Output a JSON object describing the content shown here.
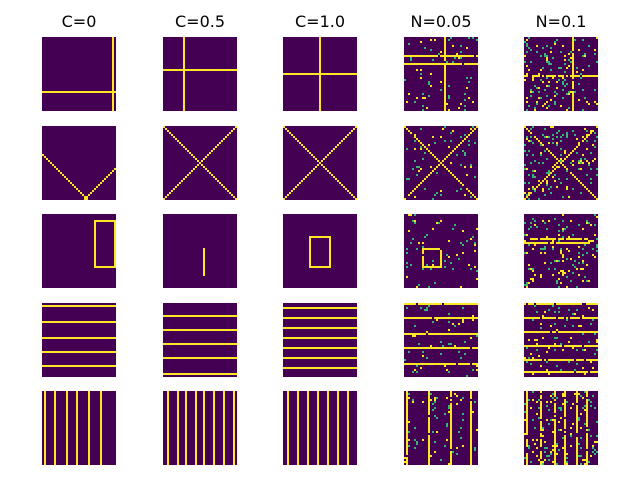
{
  "figure": {
    "column_titles": [
      "C=0",
      "C=0.5",
      "C=1.0",
      "N=0.05",
      "N=0.1"
    ],
    "colors": {
      "background": "#440154",
      "foreground": "#fde725",
      "mid": "#35b779"
    },
    "grid_size": 37,
    "rows": [
      {
        "name": "cross",
        "panels": [
          {
            "lines": [
              {
                "kind": "v",
                "at": 35
              },
              {
                "kind": "h",
                "at": 27
              }
            ],
            "noise": 0
          },
          {
            "lines": [
              {
                "kind": "v",
                "at": 10
              },
              {
                "kind": "h",
                "at": 16
              }
            ],
            "noise": 0
          },
          {
            "lines": [
              {
                "kind": "v",
                "at": 18
              },
              {
                "kind": "h",
                "at": 18
              }
            ],
            "noise": 0
          },
          {
            "lines": [
              {
                "kind": "v",
                "at": 20
              },
              {
                "kind": "h",
                "at": 9
              },
              {
                "kind": "h",
                "at": 13
              }
            ],
            "noise": 0.05,
            "seed": 11
          },
          {
            "lines": [
              {
                "kind": "v",
                "at": 24
              },
              {
                "kind": "h",
                "at": 19
              }
            ],
            "noise": 0.1,
            "seed": 12
          }
        ]
      },
      {
        "name": "x-shape",
        "panels": [
          {
            "diag": {
              "main": 14,
              "anti": 57
            },
            "noise": 0
          },
          {
            "diag": {
              "main": 0,
              "anti": 36
            },
            "noise": 0
          },
          {
            "diag": {
              "main": 0,
              "anti": 36
            },
            "noise": 0
          },
          {
            "diag": {
              "main": 0,
              "anti": 36
            },
            "noise": 0.05,
            "seed": 21
          },
          {
            "diag": {
              "main": 0,
              "anti": 36
            },
            "noise": 0.1,
            "seed": 22
          }
        ]
      },
      {
        "name": "rectangle",
        "panels": [
          {
            "rect": {
              "x0": 26,
              "y0": 3,
              "x1": 36,
              "y1": 26
            },
            "noise": 0
          },
          {
            "rect": {
              "x0": 20,
              "y0": 17,
              "x1": 20,
              "y1": 30
            },
            "noise": 0
          },
          {
            "rect": {
              "x0": 13,
              "y0": 11,
              "x1": 23,
              "y1": 26
            },
            "noise": 0
          },
          {
            "rect": {
              "x0": 9,
              "y0": 17,
              "x1": 18,
              "y1": 26
            },
            "noise": 0.05,
            "seed": 31
          },
          {
            "rect": {
              "x0": 0,
              "y0": 12,
              "x1": 32,
              "y1": 14
            },
            "noise": 0.1,
            "seed": 32
          }
        ]
      },
      {
        "name": "horizontal-stripes",
        "panels": [
          {
            "stripes": {
              "dir": "h",
              "positions": [
                1,
                9,
                17,
                24,
                31
              ]
            },
            "noise": 0
          },
          {
            "stripes": {
              "dir": "h",
              "positions": [
                6,
                13,
                20,
                27,
                35
              ]
            },
            "noise": 0
          },
          {
            "stripes": {
              "dir": "h",
              "positions": [
                2,
                7,
                12,
                17,
                22,
                27,
                32
              ]
            },
            "noise": 0
          },
          {
            "stripes": {
              "dir": "h",
              "positions": [
                0,
                7,
                15,
                22,
                30
              ]
            },
            "noise": 0.05,
            "seed": 41
          },
          {
            "stripes": {
              "dir": "h",
              "positions": [
                0,
                7,
                14,
                21,
                28,
                34
              ]
            },
            "noise": 0.1,
            "seed": 42
          }
        ]
      },
      {
        "name": "vertical-stripes",
        "panels": [
          {
            "stripes": {
              "dir": "v",
              "positions": [
                1,
                6,
                12,
                17,
                23,
                29
              ]
            },
            "noise": 0
          },
          {
            "stripes": {
              "dir": "v",
              "positions": [
                2,
                7,
                11,
                16,
                20,
                25,
                30,
                35
              ]
            },
            "noise": 0
          },
          {
            "stripes": {
              "dir": "v",
              "positions": [
                2,
                7,
                12,
                17,
                22,
                27,
                32
              ]
            },
            "noise": 0
          },
          {
            "stripes": {
              "dir": "v",
              "positions": [
                1,
                12,
                23,
                33
              ]
            },
            "noise": 0.05,
            "seed": 51
          },
          {
            "stripes": {
              "dir": "v",
              "positions": [
                1,
                8,
                15,
                20,
                26,
                31
              ]
            },
            "noise": 0.1,
            "seed": 52
          }
        ]
      }
    ]
  }
}
